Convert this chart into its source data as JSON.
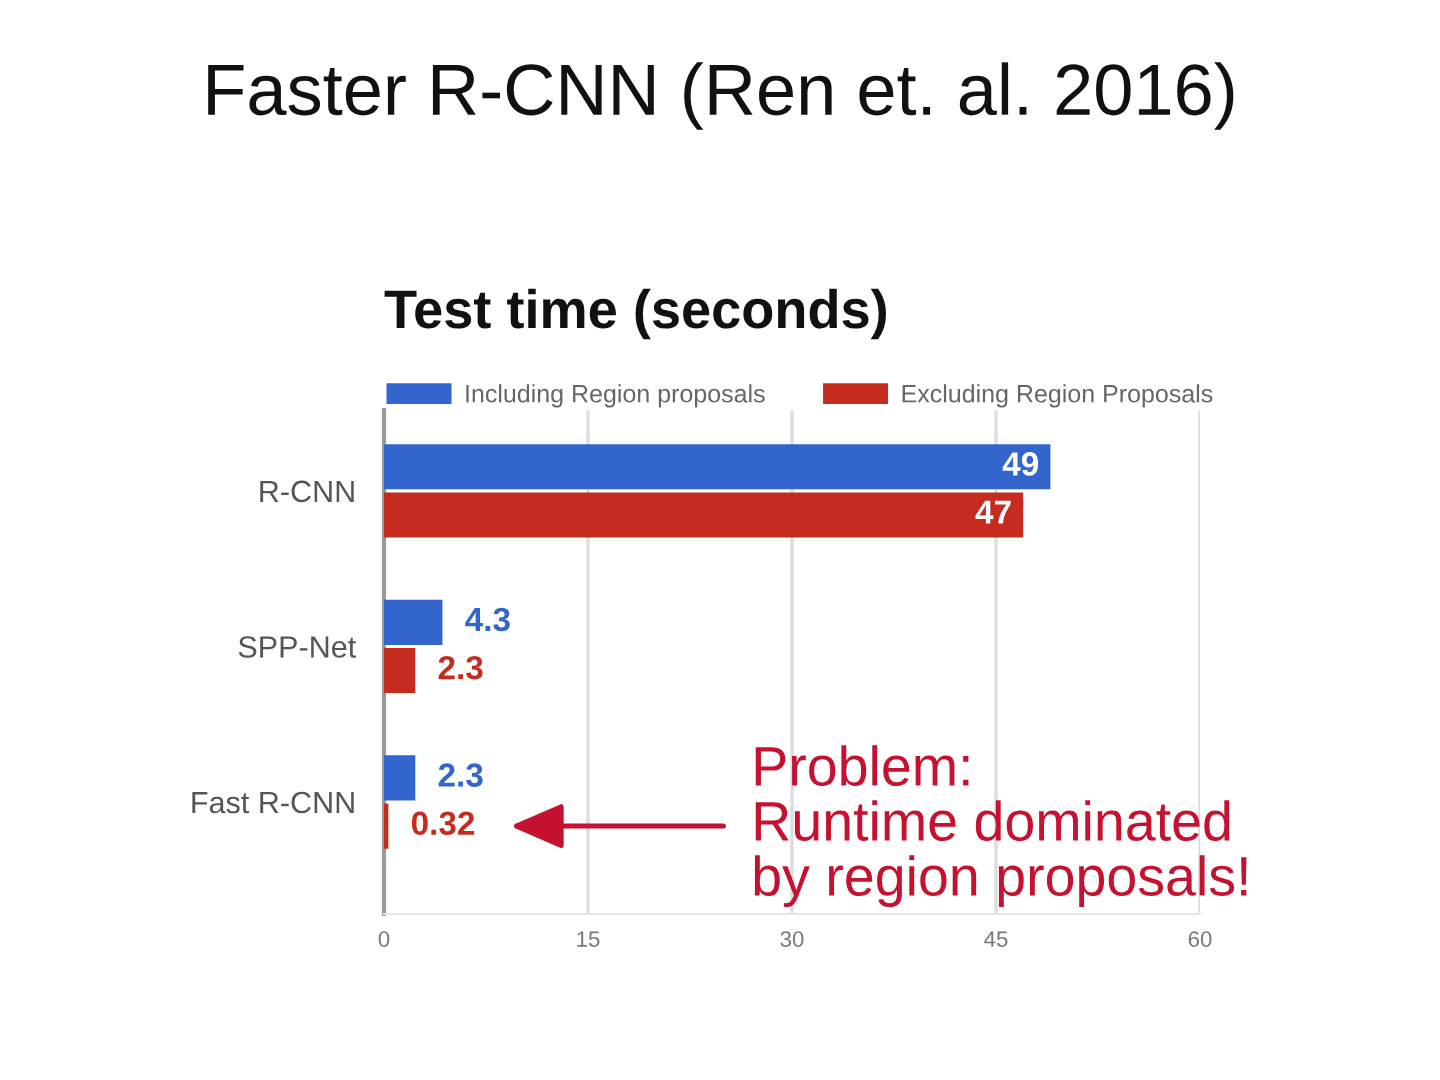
{
  "chart_data": {
    "type": "bar",
    "orientation": "horizontal",
    "title": "Faster R-CNN (Ren et. al. 2016)",
    "subtitle": "Test time (seconds)",
    "categories": [
      "R-CNN",
      "SPP-Net",
      "Fast R-CNN"
    ],
    "series": [
      {
        "name": "Including Region proposals",
        "color": "#3366cc",
        "values": [
          49,
          4.3,
          2.3
        ]
      },
      {
        "name": "Excluding Region Proposals",
        "color": "#c62b1f",
        "values": [
          47,
          2.3,
          0.32
        ]
      }
    ],
    "xlim": [
      0,
      60
    ],
    "xticks": [
      0,
      15,
      30,
      45,
      60
    ],
    "grid": "x",
    "legend": "top",
    "data_labels": true,
    "annotations": [
      "Problem:\nRuntime dominated\nby region proposals!"
    ]
  }
}
